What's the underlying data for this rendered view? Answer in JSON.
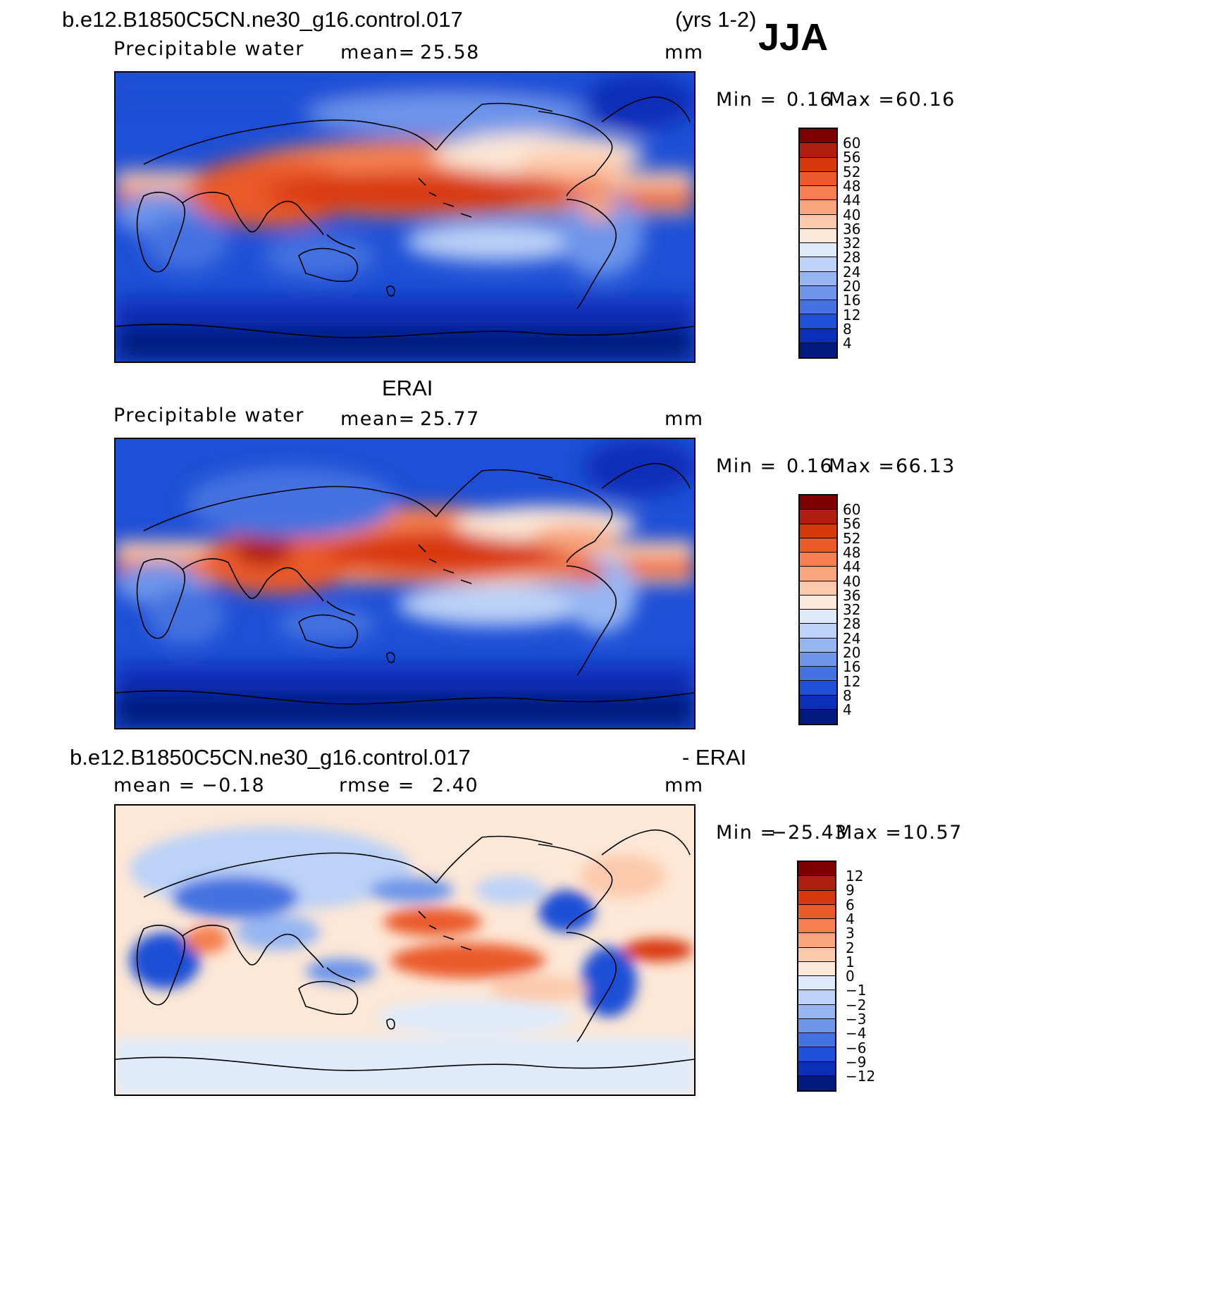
{
  "header": {
    "case_title": "b.e12.B1850C5CN.ne30_g16.control.017",
    "years": "(yrs 1-2)",
    "season": "JJA"
  },
  "panels": [
    {
      "id": "model",
      "top_title": "",
      "variable": "Precipitable water",
      "stat_label": "mean=",
      "stat_value": "25.58",
      "rmse_label": "",
      "rmse_value": "",
      "units": "mm",
      "min_label": "Min =",
      "min_value": "0.16",
      "max_label": "Max =",
      "max_value": "60.16",
      "colorbar_labels": [
        "60",
        "56",
        "52",
        "48",
        "44",
        "40",
        "36",
        "32",
        "28",
        "24",
        "20",
        "16",
        "12",
        "8",
        "4"
      ]
    },
    {
      "id": "obs",
      "top_title": "ERAI",
      "variable": "Precipitable water",
      "stat_label": "mean=",
      "stat_value": "25.77",
      "rmse_label": "",
      "rmse_value": "",
      "units": "mm",
      "min_label": "Min =",
      "min_value": "0.16",
      "max_label": "Max =",
      "max_value": "66.13",
      "colorbar_labels": [
        "60",
        "56",
        "52",
        "48",
        "44",
        "40",
        "36",
        "32",
        "28",
        "24",
        "20",
        "16",
        "12",
        "8",
        "4"
      ]
    },
    {
      "id": "diff",
      "top_title": "b.e12.B1850C5CN.ne30_g16.control.017",
      "top_title_right": "- ERAI",
      "variable": "",
      "stat_label": "mean =",
      "stat_value": "−0.18",
      "rmse_label": "rmse =",
      "rmse_value": "2.40",
      "units": "mm",
      "min_label": "Min =",
      "min_value": "−25.43",
      "max_label": "Max =",
      "max_value": "10.57",
      "colorbar_labels": [
        "12",
        "9",
        "6",
        "4",
        "3",
        "2",
        "1",
        "0",
        "−1",
        "−2",
        "−3",
        "−4",
        "−6",
        "−9",
        "−12"
      ]
    }
  ],
  "colors": {
    "abs_scale": [
      "#7f0000",
      "#b01e10",
      "#d8380e",
      "#ea5a2b",
      "#f57f4f",
      "#f8a47e",
      "#fcc9aa",
      "#fde7d6",
      "#dfebfb",
      "#bcd2f7",
      "#96b6f2",
      "#6d95ea",
      "#4472e0",
      "#1e4fd6",
      "#0a2fb8",
      "#001a80"
    ],
    "diff_scale": [
      "#7f0000",
      "#b01e10",
      "#d8380e",
      "#ea5a2b",
      "#f57f4f",
      "#f8a47e",
      "#fcc9aa",
      "#fde7d6",
      "#dfebfb",
      "#bcd2f7",
      "#96b6f2",
      "#6d95ea",
      "#4472e0",
      "#1e4fd6",
      "#0a2fb8",
      "#001a80"
    ]
  }
}
